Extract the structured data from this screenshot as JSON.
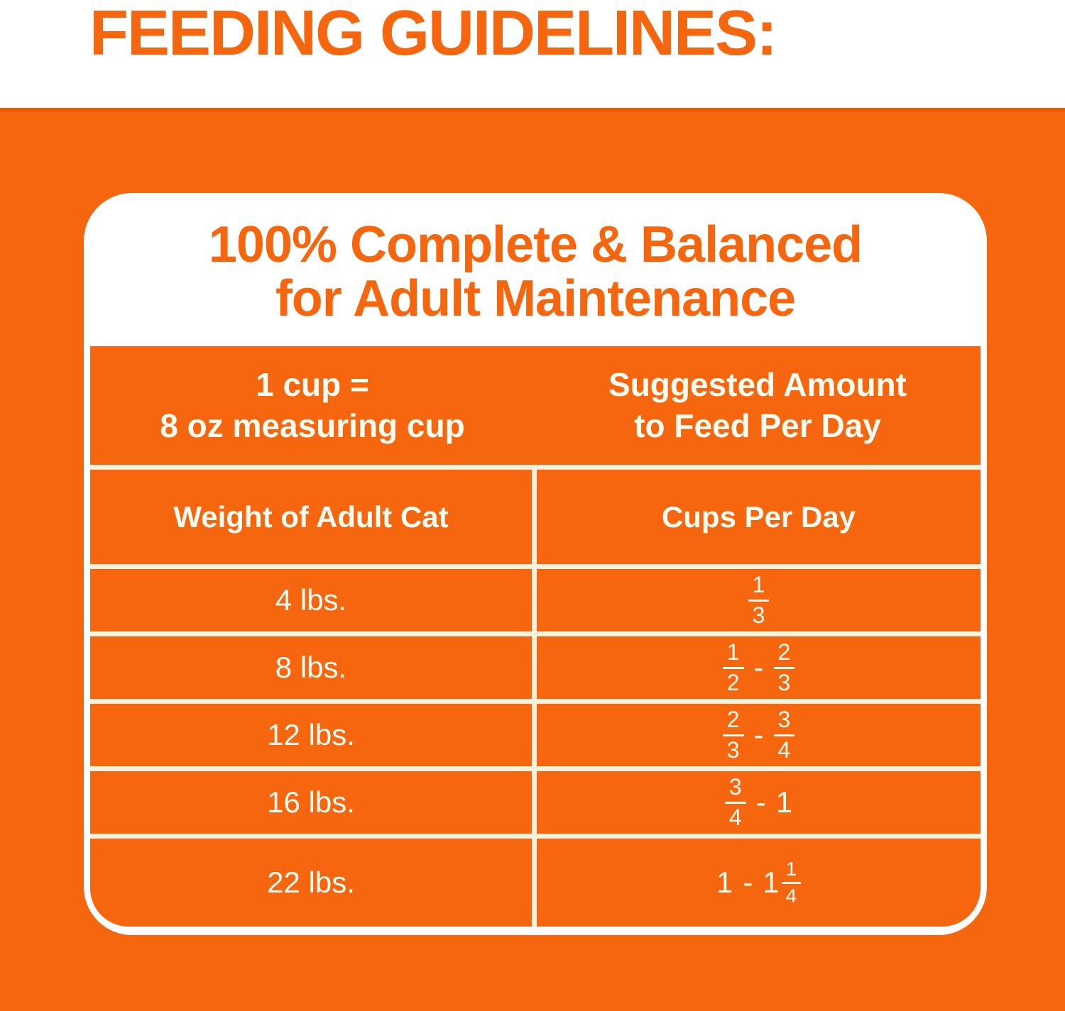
{
  "page_title": "FEEDING GUIDELINES:",
  "colors": {
    "orange": "#F5660F",
    "orange_dark": "#E25C08",
    "cream_gridline": "#F8F1DC",
    "card_white": "#FFFFFF",
    "table_text": "#FFFCF1"
  },
  "card": {
    "title_line1": "100% Complete & Balanced",
    "title_line2": "for Adult Maintenance"
  },
  "table": {
    "header": {
      "left_line1": "1 cup =",
      "left_line2": "8 oz measuring cup",
      "right_line1": "Suggested Amount",
      "right_line2": "to Feed Per Day"
    },
    "columns": {
      "left": "Weight of Adult Cat",
      "right": "Cups Per Day"
    },
    "rows": [
      {
        "weight": "4 lbs.",
        "cups": [
          {
            "frac": [
              "1",
              "3"
            ]
          }
        ]
      },
      {
        "weight": "8 lbs.",
        "cups": [
          {
            "frac": [
              "1",
              "2"
            ]
          },
          {
            "text": "-"
          },
          {
            "frac": [
              "2",
              "3"
            ]
          }
        ]
      },
      {
        "weight": "12 lbs.",
        "cups": [
          {
            "frac": [
              "2",
              "3"
            ]
          },
          {
            "text": "-"
          },
          {
            "frac": [
              "3",
              "4"
            ]
          }
        ]
      },
      {
        "weight": "16 lbs.",
        "cups": [
          {
            "frac": [
              "3",
              "4"
            ]
          },
          {
            "text": "-"
          },
          {
            "text": "1"
          }
        ]
      },
      {
        "weight": "22 lbs.",
        "cups": [
          {
            "text": "1"
          },
          {
            "text": "-"
          },
          {
            "mixed": {
              "whole": "1",
              "frac": [
                "1",
                "4"
              ]
            }
          }
        ]
      }
    ]
  }
}
